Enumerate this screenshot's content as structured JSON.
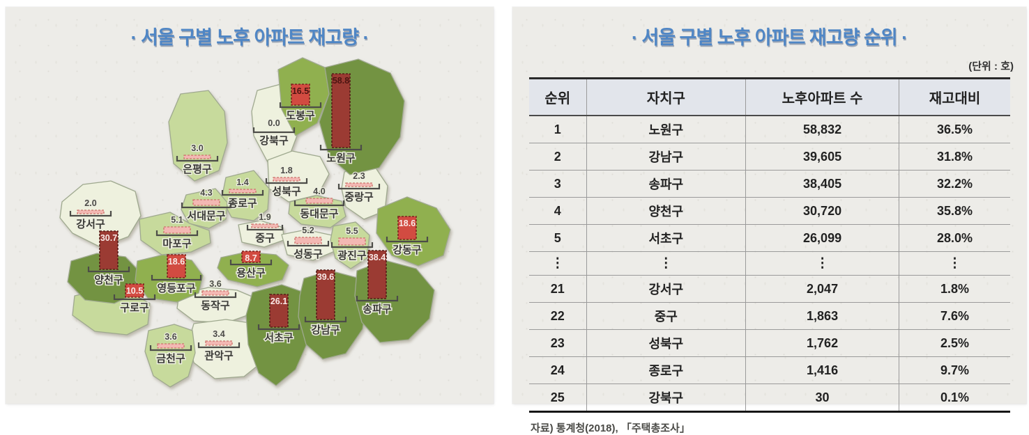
{
  "map": {
    "title": "· 서울 구별 노후 아파트 재고량 ·",
    "districts": [
      {
        "name": "강서구",
        "value": 2.0,
        "band": "pale",
        "bar": "pink"
      },
      {
        "name": "은평구",
        "value": 3.0,
        "band": "light",
        "bar": "pink"
      },
      {
        "name": "강북구",
        "value": 0.0,
        "band": "pale",
        "bar": "none"
      },
      {
        "name": "성북구",
        "value": 1.8,
        "band": "pale",
        "bar": "pink"
      },
      {
        "name": "중랑구",
        "value": 2.3,
        "band": "pale",
        "bar": "pink"
      },
      {
        "name": "종로구",
        "value": 1.4,
        "band": "light",
        "bar": "pink"
      },
      {
        "name": "동대문구",
        "value": 4.0,
        "band": "light",
        "bar": "pink"
      },
      {
        "name": "서대문구",
        "value": 4.3,
        "band": "light",
        "bar": "pink"
      },
      {
        "name": "마포구",
        "value": 5.1,
        "band": "light",
        "bar": "pink"
      },
      {
        "name": "중구",
        "value": 1.9,
        "band": "pale",
        "bar": "pink"
      },
      {
        "name": "성동구",
        "value": 5.2,
        "band": "pale",
        "bar": "pink"
      },
      {
        "name": "광진구",
        "value": 5.5,
        "band": "light",
        "bar": "pink"
      },
      {
        "name": "동작구",
        "value": 3.6,
        "band": "pale",
        "bar": "pink"
      },
      {
        "name": "관악구",
        "value": 3.4,
        "band": "pale",
        "bar": "pink"
      },
      {
        "name": "금천구",
        "value": 3.6,
        "band": "light",
        "bar": "pink"
      },
      {
        "name": "구로구",
        "value": 10.5,
        "band": "light",
        "bar": "red"
      },
      {
        "name": "도봉구",
        "value": 16.5,
        "band": "medium",
        "bar": "red",
        "dark_text": true
      },
      {
        "name": "노원구",
        "value": 58.8,
        "band": "dark",
        "bar": "maroon",
        "dark_text": true
      },
      {
        "name": "강동구",
        "value": 18.6,
        "band": "medium",
        "bar": "red"
      },
      {
        "name": "양천구",
        "value": 30.7,
        "band": "dark",
        "bar": "maroon"
      },
      {
        "name": "영등포구",
        "value": 18.6,
        "band": "medium",
        "bar": "red"
      },
      {
        "name": "용산구",
        "value": 8.7,
        "band": "medium",
        "bar": "red"
      },
      {
        "name": "서초구",
        "value": 26.1,
        "band": "dark",
        "bar": "maroon"
      },
      {
        "name": "강남구",
        "value": 39.6,
        "band": "dark",
        "bar": "maroon"
      },
      {
        "name": "송파구",
        "value": 38.4,
        "band": "dark",
        "bar": "maroon"
      }
    ]
  },
  "table": {
    "title": "· 서울 구별 노후 아파트 재고량 순위 ·",
    "unit": "(단위 : 호)",
    "columns": [
      "순위",
      "자치구",
      "노후아파트 수",
      "재고대비"
    ],
    "rows": [
      [
        "1",
        "노원구",
        "58,832",
        "36.5%"
      ],
      [
        "2",
        "강남구",
        "39,605",
        "31.8%"
      ],
      [
        "3",
        "송파구",
        "38,405",
        "32.2%"
      ],
      [
        "4",
        "양천구",
        "30,720",
        "35.8%"
      ],
      [
        "5",
        "서초구",
        "26,099",
        "28.0%"
      ],
      [
        "⋮",
        "⋮",
        "⋮",
        "⋮"
      ],
      [
        "21",
        "강서구",
        "2,047",
        "1.8%"
      ],
      [
        "22",
        "중구",
        "1,863",
        "7.6%"
      ],
      [
        "23",
        "성북구",
        "1,762",
        "2.5%"
      ],
      [
        "24",
        "종로구",
        "1,416",
        "9.7%"
      ],
      [
        "25",
        "강북구",
        "30",
        "0.1%"
      ]
    ],
    "source": "자료) 통계청(2018), 「주택총조사」"
  },
  "colors": {
    "title_blue": "#4f86c5",
    "panel_bg": "#edece8",
    "band_pale": "#eef1de",
    "band_light": "#c7da9c",
    "band_medium": "#90b050",
    "band_dark": "#739342",
    "bar_maroon": "#9b3b33",
    "bar_red": "#d24b41",
    "bar_pink": "#f3b8b3",
    "table_header_bg": "#e2e5eb"
  },
  "chart_data": [
    {
      "type": "heatmap",
      "subtype": "choropleth-map-with-bars",
      "title": "서울 구별 노후 아파트 재고량",
      "categories": [
        "강서구",
        "은평구",
        "강북구",
        "성북구",
        "중랑구",
        "종로구",
        "동대문구",
        "서대문구",
        "마포구",
        "중구",
        "성동구",
        "광진구",
        "동작구",
        "관악구",
        "금천구",
        "구로구",
        "도봉구",
        "노원구",
        "강동구",
        "양천구",
        "영등포구",
        "용산구",
        "서초구",
        "강남구",
        "송파구"
      ],
      "values": [
        2.0,
        3.0,
        0.0,
        1.8,
        2.3,
        1.4,
        4.0,
        4.3,
        5.1,
        1.9,
        5.2,
        5.5,
        3.6,
        3.4,
        3.6,
        10.5,
        16.5,
        58.8,
        18.6,
        30.7,
        18.6,
        8.7,
        26.1,
        39.6,
        38.4
      ],
      "legend_position": "none"
    },
    {
      "type": "table",
      "title": "서울 구별 노후 아파트 재고량 순위",
      "unit": "(단위 : 호)",
      "columns": [
        "순위",
        "자치구",
        "노후아파트 수",
        "재고대비"
      ],
      "rows": [
        [
          "1",
          "노원구",
          "58,832",
          "36.5%"
        ],
        [
          "2",
          "강남구",
          "39,605",
          "31.8%"
        ],
        [
          "3",
          "송파구",
          "38,405",
          "32.2%"
        ],
        [
          "4",
          "양천구",
          "30,720",
          "35.8%"
        ],
        [
          "5",
          "서초구",
          "26,099",
          "28.0%"
        ],
        [
          "⋮",
          "⋮",
          "⋮",
          "⋮"
        ],
        [
          "21",
          "강서구",
          "2,047",
          "1.8%"
        ],
        [
          "22",
          "중구",
          "1,863",
          "7.6%"
        ],
        [
          "23",
          "성북구",
          "1,762",
          "2.5%"
        ],
        [
          "24",
          "종로구",
          "1,416",
          "9.7%"
        ],
        [
          "25",
          "강북구",
          "30",
          "0.1%"
        ]
      ],
      "source": "자료) 통계청(2018), 「주택총조사」"
    }
  ]
}
